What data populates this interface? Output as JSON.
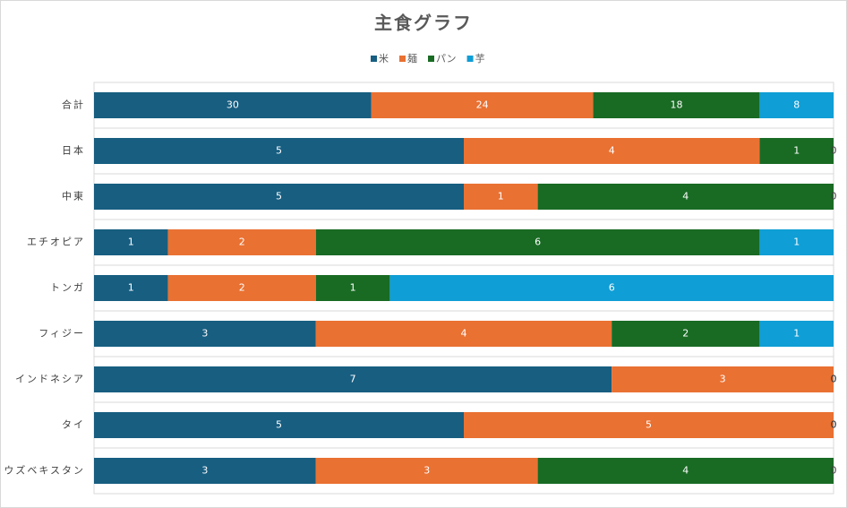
{
  "chart_data": {
    "type": "bar",
    "orientation": "horizontal",
    "stacked": "percent",
    "title": "主食グラフ",
    "categories": [
      "合計",
      "日本",
      "中東",
      "エチオピア",
      "トンガ",
      "フィジー",
      "インドネシア",
      "タイ",
      "ウズベキスタン"
    ],
    "series": [
      {
        "name": "米",
        "color": "#175e81",
        "values": [
          30,
          5,
          5,
          1,
          1,
          3,
          7,
          5,
          3
        ]
      },
      {
        "name": "麺",
        "color": "#e97132",
        "values": [
          24,
          4,
          1,
          2,
          2,
          4,
          3,
          5,
          3
        ]
      },
      {
        "name": "パン",
        "color": "#196b24",
        "values": [
          18,
          1,
          4,
          6,
          1,
          2,
          0,
          0,
          4
        ]
      },
      {
        "name": "芋",
        "color": "#0f9ed5",
        "values": [
          8,
          0,
          0,
          1,
          6,
          1,
          0,
          0,
          0
        ]
      }
    ],
    "legend": "top"
  }
}
